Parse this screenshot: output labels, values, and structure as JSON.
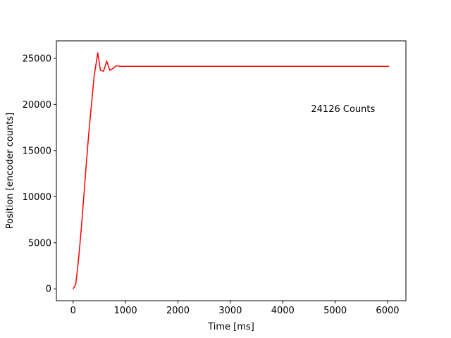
{
  "chart_data": {
    "type": "line",
    "title": "",
    "xlabel": "Time [ms]",
    "ylabel": "Position [encoder counts]",
    "xlim": [
      -320,
      6350
    ],
    "ylim": [
      -1280,
      26900
    ],
    "xticks": [
      0,
      1000,
      2000,
      3000,
      4000,
      5000,
      6000
    ],
    "yticks": [
      0,
      5000,
      10000,
      15000,
      20000,
      25000
    ],
    "grid": false,
    "line_color": "#ff0000",
    "series": [
      {
        "x": [
          0,
          50,
          100,
          150,
          200,
          250,
          300,
          350,
          400,
          470,
          520,
          580,
          640,
          700,
          760,
          820,
          900,
          1000,
          2000,
          3000,
          4000,
          5000,
          6030
        ],
        "y": [
          0,
          500,
          3000,
          6200,
          9800,
          13500,
          17000,
          20000,
          23000,
          25600,
          23700,
          23600,
          24700,
          23700,
          23900,
          24200,
          24126,
          24126,
          24126,
          24126,
          24126,
          24126,
          24126
        ]
      }
    ],
    "annotations": [
      {
        "text": "24126 Counts",
        "x": 4540,
        "y": 19200
      }
    ]
  }
}
